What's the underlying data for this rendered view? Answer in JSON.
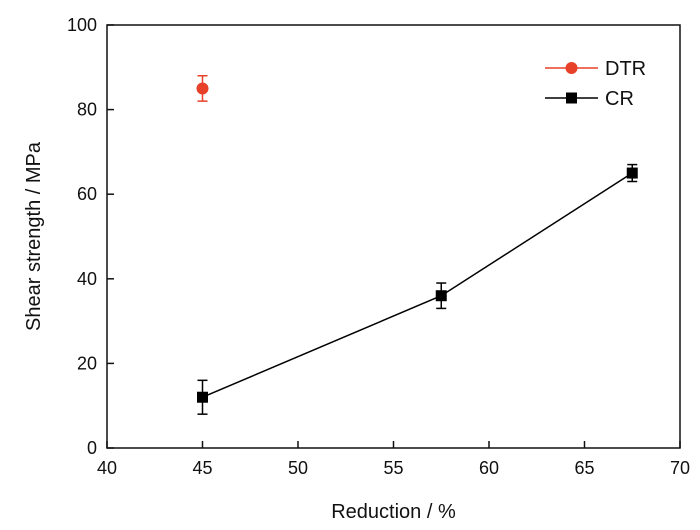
{
  "chart_data": {
    "type": "scatter",
    "title": "",
    "xlabel": "Reduction / %",
    "ylabel": "Shear strength / MPa",
    "xlim": [
      40,
      70
    ],
    "ylim": [
      0,
      100
    ],
    "x_ticks": [
      40,
      45,
      50,
      55,
      60,
      65,
      70
    ],
    "y_ticks": [
      0,
      20,
      40,
      60,
      80,
      100
    ],
    "grid": false,
    "legend_position": "top-right",
    "series": [
      {
        "name": "DTR",
        "color": "#e8412a",
        "marker": "circle",
        "line": false,
        "points": [
          {
            "x": 45,
            "y": 85,
            "err": 3
          }
        ]
      },
      {
        "name": "CR",
        "color": "#000000",
        "marker": "square",
        "line": true,
        "points": [
          {
            "x": 45,
            "y": 12,
            "err": 4
          },
          {
            "x": 57.5,
            "y": 36,
            "err": 3
          },
          {
            "x": 67.5,
            "y": 65,
            "err": 2
          }
        ]
      }
    ]
  }
}
